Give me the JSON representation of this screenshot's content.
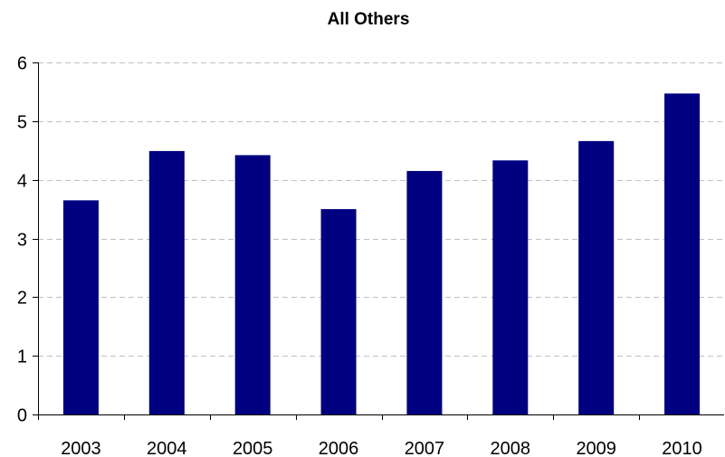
{
  "chart_data": {
    "type": "bar",
    "title": "All Others",
    "xlabel": "",
    "ylabel": "",
    "categories": [
      "2003",
      "2004",
      "2005",
      "2006",
      "2007",
      "2008",
      "2009",
      "2010"
    ],
    "values": [
      3.65,
      4.49,
      4.42,
      3.5,
      4.15,
      4.33,
      4.66,
      5.47
    ],
    "ylim": [
      0,
      6
    ],
    "yticks": [
      "0",
      "1",
      "2",
      "3",
      "4",
      "5",
      "6"
    ],
    "grid": true,
    "legend": "none",
    "bar_color": "#000080",
    "grid_color": "#c0c0c0"
  }
}
